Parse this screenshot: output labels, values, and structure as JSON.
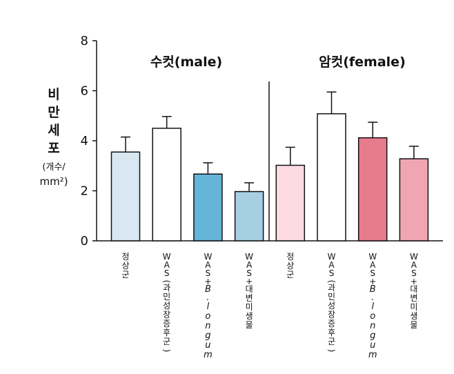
{
  "chart_data": {
    "type": "bar",
    "ylabel_main": "비만세포",
    "ylabel_unit": "(개수/",
    "ylabel_unit2": "mm²)",
    "ylim": [
      0,
      8
    ],
    "yticks": [
      "0",
      "2",
      "4",
      "6",
      "8"
    ],
    "groups": [
      {
        "label": "수컷(male)",
        "bar_indices": [
          0,
          1,
          2,
          3
        ]
      },
      {
        "label": "암컷(female)",
        "bar_indices": [
          4,
          5,
          6,
          7
        ]
      }
    ],
    "bars": [
      {
        "category": "정상군",
        "value": 3.55,
        "error": 0.6,
        "color": "#d8e7f1"
      },
      {
        "category": "WAS(과민성장증후군)",
        "value": 4.5,
        "error": 0.47,
        "color": "#ffffff"
      },
      {
        "category": "WAS+B. longum",
        "value": 2.67,
        "error": 0.45,
        "color": "#64b5d8"
      },
      {
        "category": "WAS+대변미생물",
        "value": 1.97,
        "error": 0.35,
        "color": "#a7cfe4"
      },
      {
        "category": "정상군",
        "value": 3.02,
        "error": 0.72,
        "color": "#fcdbe2"
      },
      {
        "category": "WAS(과민성장증후군)",
        "value": 5.08,
        "error": 0.87,
        "color": "#ffffff"
      },
      {
        "category": "WAS+B. longum",
        "value": 4.12,
        "error": 0.62,
        "color": "#e77c8d"
      },
      {
        "category": "WAS+대변미생물",
        "value": 3.28,
        "error": 0.5,
        "color": "#f0a6b1"
      }
    ]
  }
}
